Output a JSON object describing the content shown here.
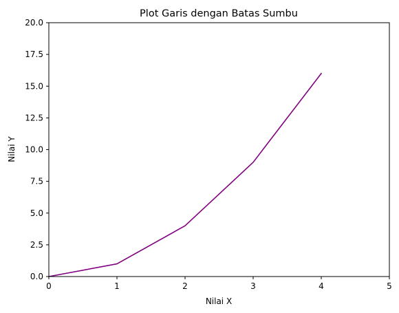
{
  "chart_data": {
    "type": "line",
    "title": "Plot Garis dengan Batas Sumbu",
    "xlabel": "Nilai X",
    "ylabel": "Nilai Y",
    "xlim": [
      0,
      5
    ],
    "ylim": [
      0,
      20
    ],
    "xticks": [
      0,
      1,
      2,
      3,
      4,
      5
    ],
    "xtick_labels": [
      "0",
      "1",
      "2",
      "3",
      "4",
      "5"
    ],
    "yticks": [
      0,
      2.5,
      5,
      7.5,
      10,
      12.5,
      15,
      17.5,
      20
    ],
    "ytick_labels": [
      "0.0",
      "2.5",
      "5.0",
      "7.5",
      "10.0",
      "12.5",
      "15.0",
      "17.5",
      "20.0"
    ],
    "grid": false,
    "series": [
      {
        "color": "#800080",
        "x": [
          0,
          1,
          2,
          3,
          4
        ],
        "y": [
          0,
          1,
          4,
          9,
          16
        ]
      }
    ]
  }
}
